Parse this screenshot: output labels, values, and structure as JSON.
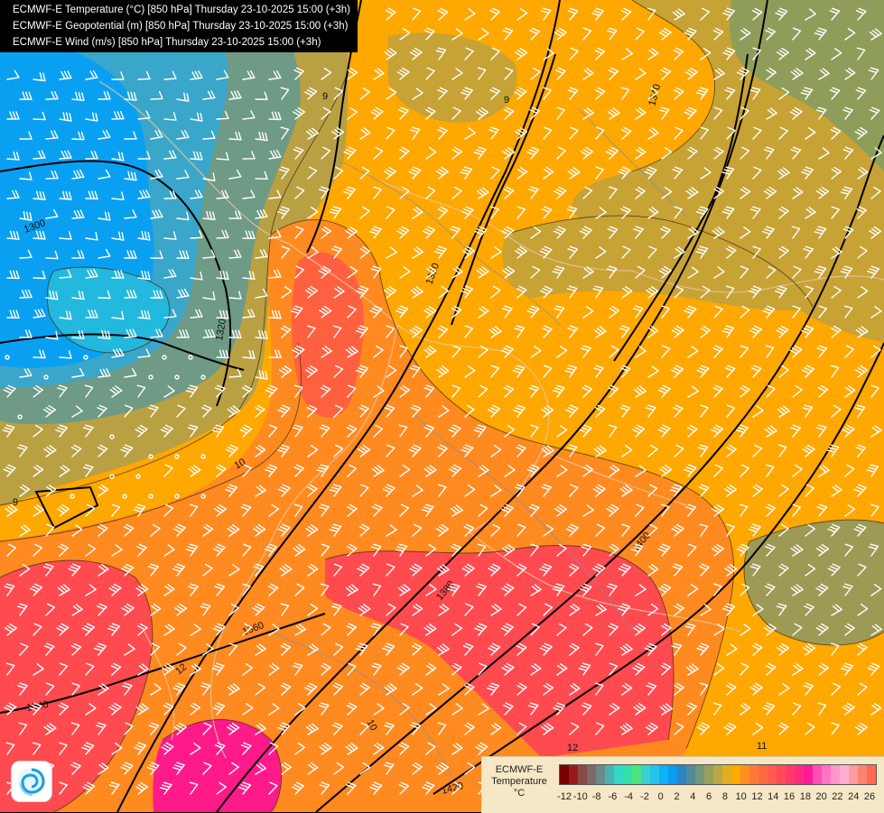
{
  "titles": [
    "ECMWF-E Temperature (°C) [850 hPa] Thursday 23-10-2025 15:00 (+3h)",
    "ECMWF-E Geopotential (m) [850 hPa] Thursday 23-10-2025 15:00 (+3h)",
    "ECMWF-E Wind (m/s) [850 hPa] Thursday 23-10-2025 15:00 (+3h)"
  ],
  "legend": {
    "title_line1": "ECMWF-E",
    "title_line2": "Temperature",
    "unit": "°C",
    "colors": [
      "#7a0000",
      "#9a1a1a",
      "#8a4a4a",
      "#7d6a6a",
      "#6b8a8a",
      "#49b3b3",
      "#33d9c6",
      "#33e0a6",
      "#4de37d",
      "#38d0d0",
      "#24c3ea",
      "#0fb0f5",
      "#0a9cf0",
      "#2a86c8",
      "#4f8c9a",
      "#72977a",
      "#96a05a",
      "#b8a845",
      "#e0ae20",
      "#ffa800",
      "#ff9020",
      "#ff7a30",
      "#ff6a40",
      "#ff5a50",
      "#ff4a5a",
      "#ff3a6a",
      "#ff2a80",
      "#ff1a9a",
      "#ff4fb3",
      "#ff74c3",
      "#ff96cd",
      "#ffb0d0",
      "#ff9aa0",
      "#ff8270",
      "#ff6a50",
      "#ff5540",
      "#ff4a35"
    ],
    "ticks": [
      "-12",
      "-10",
      "-8",
      "-6",
      "-4",
      "-2",
      "0",
      "2",
      "4",
      "6",
      "8",
      "10",
      "12",
      "14",
      "16",
      "18",
      "20",
      "22",
      "24",
      "26"
    ]
  },
  "contour_labels": {
    "geopotential": [
      "1300",
      "1320",
      "1340",
      "1360",
      "1380",
      "1400",
      "1420",
      "1340",
      "1320"
    ],
    "temperature": [
      "9",
      "10",
      "12",
      "10",
      "9",
      "12",
      "11",
      "9"
    ]
  },
  "wind_flag_colors": {
    "barb": "#ffffff",
    "geopotential_line": "#000000",
    "temperature_line": "#333333"
  }
}
